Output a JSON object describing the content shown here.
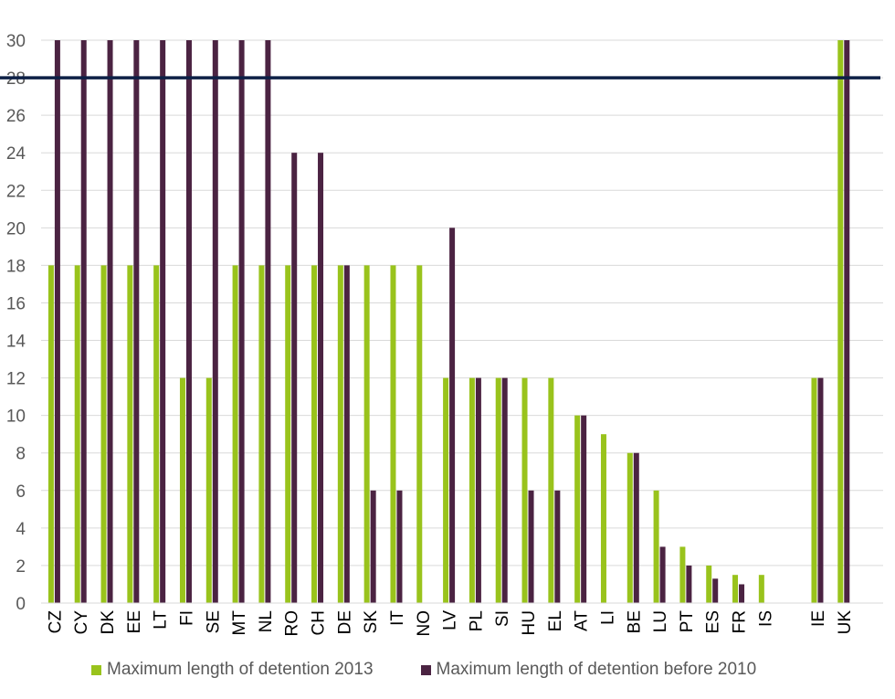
{
  "chart_data": {
    "type": "bar",
    "categories": [
      "CZ",
      "CY",
      "DK",
      "EE",
      "LT",
      "FI",
      "SE",
      "MT",
      "NL",
      "RO",
      "CH",
      "DE",
      "SK",
      "IT",
      "NO",
      "LV",
      "PL",
      "SI",
      "HU",
      "EL",
      "AT",
      "LI",
      "BE",
      "LU",
      "PT",
      "ES",
      "FR",
      "IS",
      "",
      "IE",
      "UK",
      ""
    ],
    "series": [
      {
        "name": "Maximum length of detention 2013",
        "values": [
          18,
          18,
          18,
          18,
          18,
          12,
          12,
          18,
          18,
          18,
          18,
          18,
          18,
          18,
          18,
          12,
          12,
          12,
          12,
          12,
          10,
          9,
          8,
          6,
          3,
          2,
          1.5,
          1.5,
          null,
          12,
          30,
          null
        ]
      },
      {
        "name": "Maximum length of detention before 2010",
        "values": [
          30,
          30,
          30,
          30,
          30,
          30,
          30,
          30,
          30,
          24,
          24,
          18,
          6,
          6,
          null,
          20,
          12,
          12,
          6,
          6,
          10,
          null,
          8,
          3,
          2,
          1.3,
          1,
          null,
          null,
          12,
          30,
          null
        ]
      }
    ],
    "colors": {
      "series_2013": "#99c31c",
      "series_before_2010": "#4b2342",
      "reference_line": "#0d2046",
      "axis_text": "#595959",
      "grid": "#d9d9d9"
    },
    "reference_line_value": 28,
    "ylim": [
      0,
      30
    ],
    "yticks": [
      0,
      2,
      4,
      6,
      8,
      10,
      12,
      14,
      16,
      18,
      20,
      22,
      24,
      26,
      28,
      30
    ],
    "grid": true,
    "legend_position": "bottom",
    "title": "",
    "xlabel": "",
    "ylabel": ""
  }
}
